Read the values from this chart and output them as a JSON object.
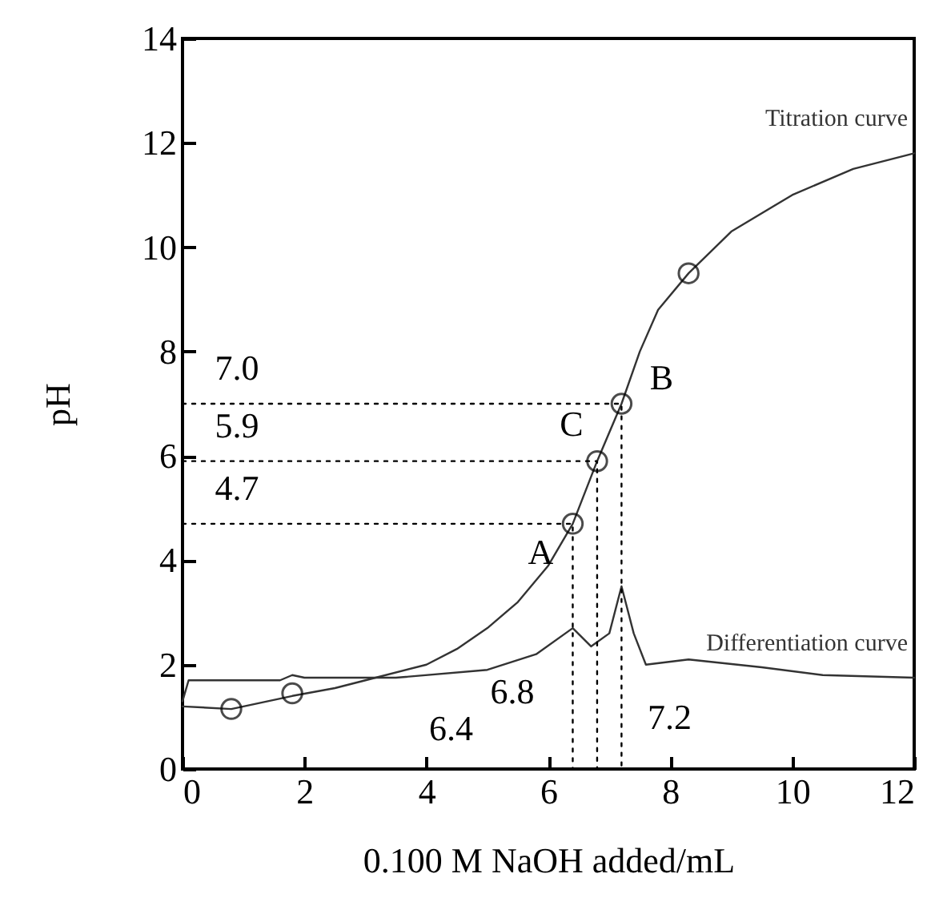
{
  "chart_data": {
    "type": "line",
    "xlabel": "0.100 M NaOH added/mL",
    "ylabel": "pH",
    "xlim": [
      0,
      12
    ],
    "ylim": [
      0,
      14
    ],
    "xticks": [
      0,
      2,
      4,
      6,
      8,
      10,
      12
    ],
    "yticks": [
      0,
      2,
      4,
      6,
      8,
      10,
      12,
      14
    ],
    "grid": false,
    "line_style": "solid",
    "series": [
      {
        "name": "Titration curve",
        "color": "#333333",
        "x": [
          0,
          0.8,
          1.8,
          2.5,
          3,
          4,
          4.5,
          5,
          5.5,
          6,
          6.4,
          6.8,
          7.2,
          7.5,
          7.8,
          8.3,
          9,
          10,
          11,
          12
        ],
        "values": [
          1.2,
          1.15,
          1.4,
          1.55,
          1.7,
          2.0,
          2.3,
          2.7,
          3.2,
          3.9,
          4.7,
          5.9,
          7.0,
          8.0,
          8.8,
          9.5,
          10.3,
          11.0,
          11.5,
          11.8
        ]
      },
      {
        "name": "Differentiation curve",
        "color": "#333333",
        "x": [
          0,
          0.1,
          1.6,
          1.8,
          2.0,
          3.5,
          5,
          5.8,
          6.4,
          6.7,
          7.0,
          7.2,
          7.4,
          7.6,
          8.3,
          9.5,
          10.5,
          12
        ],
        "values": [
          1.3,
          1.7,
          1.7,
          1.8,
          1.75,
          1.75,
          1.9,
          2.2,
          2.7,
          2.35,
          2.6,
          3.5,
          2.6,
          2.0,
          2.1,
          1.95,
          1.8,
          1.75
        ]
      },
      {
        "type": "line",
        "line_style": "dotted",
        "color": "#000000",
        "x": [
          0,
          7.2,
          7.2
        ],
        "values": [
          7.0,
          7.0,
          0
        ]
      },
      {
        "type": "line",
        "line_style": "dotted",
        "color": "#000000",
        "x": [
          0,
          6.8,
          6.8
        ],
        "values": [
          5.9,
          5.9,
          0
        ]
      },
      {
        "type": "line",
        "line_style": "dotted",
        "color": "#000000",
        "x": [
          0,
          6.4,
          6.4
        ],
        "values": [
          4.7,
          4.7,
          0
        ]
      },
      {
        "type": "scatter",
        "marker": "circle",
        "color": "#000000",
        "x": [
          0.8,
          1.8,
          8.3,
          6.4,
          6.8,
          7.2
        ],
        "values": [
          1.15,
          1.45,
          9.5,
          4.7,
          5.9,
          7.0
        ]
      }
    ],
    "annotations": [
      {
        "text": "7.0",
        "x": 0,
        "y": 7.0
      },
      {
        "text": "5.9",
        "x": 0,
        "y": 5.9
      },
      {
        "text": "4.7",
        "x": 0,
        "y": 4.7
      },
      {
        "text": "A",
        "x": 6.4,
        "y": 4.7
      },
      {
        "text": "B",
        "x": 7.2,
        "y": 7.0
      },
      {
        "text": "C",
        "x": 6.8,
        "y": 5.9
      },
      {
        "text": "6.4",
        "x": 6.4,
        "y": 0
      },
      {
        "text": "6.8",
        "x": 6.8,
        "y": 0
      },
      {
        "text": "7.2",
        "x": 7.2,
        "y": 0
      }
    ]
  }
}
